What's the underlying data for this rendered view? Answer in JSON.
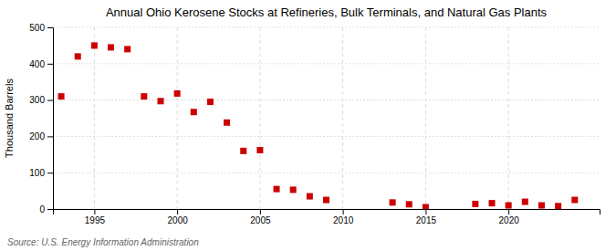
{
  "chart_data": {
    "type": "scatter",
    "title": "Annual Ohio Kerosene Stocks at Refineries, Bulk Terminals, and Natural Gas Plants",
    "ylabel": "Thousand Barrels",
    "source": "Source: U.S. Energy Information Administration",
    "x": [
      1993,
      1994,
      1995,
      1996,
      1997,
      1998,
      1999,
      2000,
      2001,
      2002,
      2003,
      2004,
      2005,
      2006,
      2007,
      2008,
      2009,
      2013,
      2014,
      2015,
      2018,
      2019,
      2020,
      2021,
      2022,
      2023,
      2024
    ],
    "values": [
      310,
      420,
      450,
      445,
      440,
      310,
      297,
      318,
      267,
      295,
      238,
      160,
      162,
      55,
      53,
      35,
      25,
      18,
      13,
      5,
      14,
      16,
      10,
      20,
      10,
      8,
      25
    ],
    "color": "#cc0000",
    "marker": "square",
    "xlim": [
      1992.5,
      2025.5
    ],
    "ylim": [
      0,
      500
    ],
    "xticks": [
      1995,
      2000,
      2005,
      2010,
      2015,
      2020
    ],
    "yticks": [
      0,
      100,
      200,
      300,
      400,
      500
    ],
    "grid": true
  }
}
